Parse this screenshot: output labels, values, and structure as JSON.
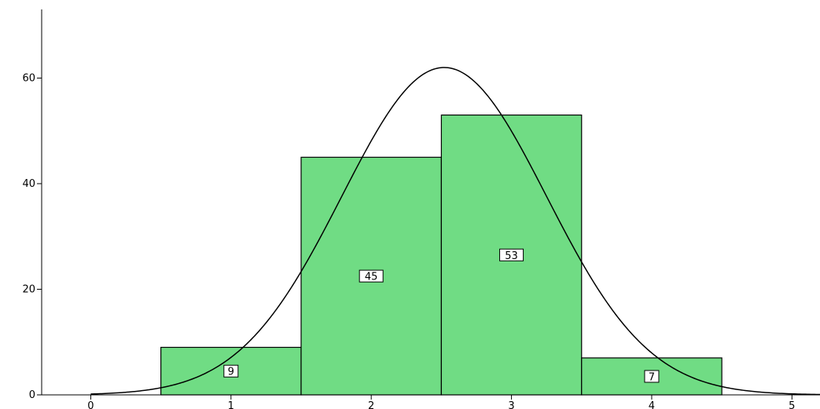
{
  "chart_data": {
    "type": "bar",
    "subtype": "histogram",
    "title": "",
    "xlabel": "",
    "ylabel": "",
    "xlim": [
      -0.35,
      5.2
    ],
    "ylim": [
      0,
      73
    ],
    "x_ticks": [
      0,
      1,
      2,
      3,
      4,
      5
    ],
    "x_tick_labels": [
      "0",
      "1",
      "2",
      "3",
      "4",
      "5"
    ],
    "y_ticks": [
      0,
      20,
      40,
      60
    ],
    "y_tick_labels": [
      "0",
      "20",
      "40",
      "60"
    ],
    "bins": [
      {
        "x_start": 0.5,
        "x_end": 1.5,
        "value": 9,
        "label": "9"
      },
      {
        "x_start": 1.5,
        "x_end": 2.5,
        "value": 45,
        "label": "45"
      },
      {
        "x_start": 2.5,
        "x_end": 3.5,
        "value": 53,
        "label": "53"
      },
      {
        "x_start": 3.5,
        "x_end": 4.5,
        "value": 7,
        "label": "7"
      }
    ],
    "normal_curve": {
      "mean": 2.52,
      "sd": 0.73,
      "peak": 62,
      "x_range": [
        0,
        5.2
      ]
    },
    "bar_color": "#70dc84",
    "bar_edge_color": "#000000",
    "curve_color": "#000000",
    "grid": false,
    "legend": "none"
  }
}
